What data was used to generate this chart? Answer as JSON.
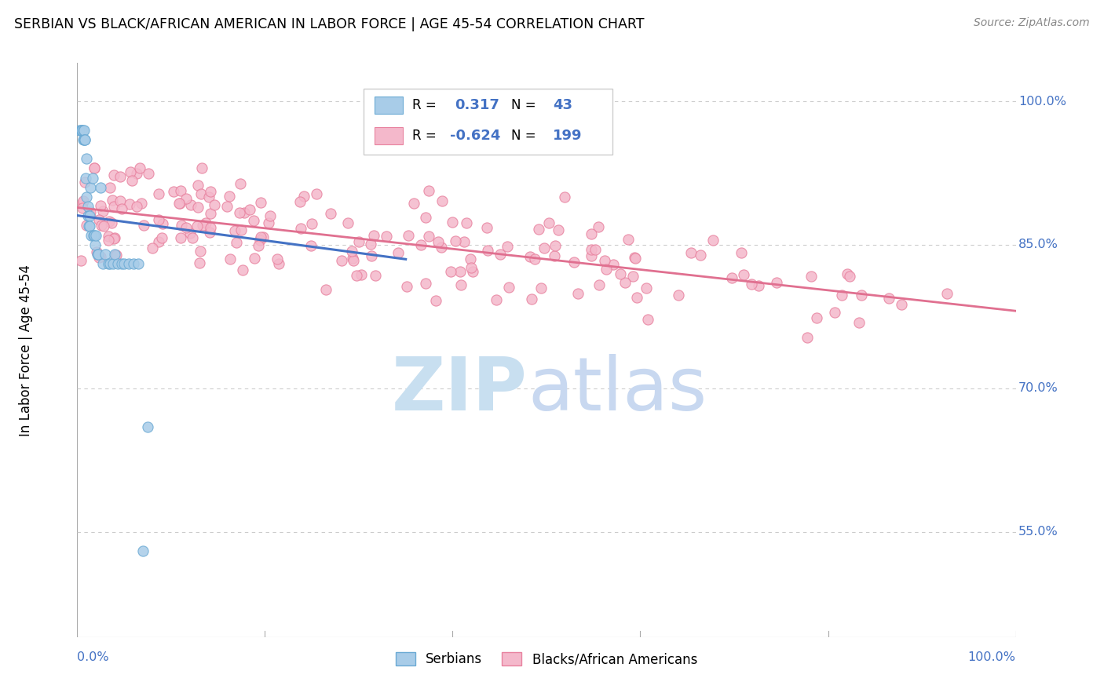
{
  "title": "SERBIAN VS BLACK/AFRICAN AMERICAN IN LABOR FORCE | AGE 45-54 CORRELATION CHART",
  "source": "Source: ZipAtlas.com",
  "ylabel": "In Labor Force | Age 45-54",
  "right_yticks": [
    "100.0%",
    "85.0%",
    "70.0%",
    "55.0%"
  ],
  "right_ytick_vals": [
    1.0,
    0.85,
    0.7,
    0.55
  ],
  "xmin": 0.0,
  "xmax": 1.0,
  "ymin": 0.44,
  "ymax": 1.04,
  "serbian_color": "#a8cce8",
  "serbian_edge": "#6baad4",
  "black_color": "#f4b8cb",
  "black_edge": "#e8829f",
  "line_serb_color": "#4472c4",
  "line_black_color": "#e07090",
  "serbian_R": 0.317,
  "serbian_N": 43,
  "black_R": -0.624,
  "black_N": 199,
  "grid_color": "#cccccc",
  "axis_color": "#aaaaaa",
  "label_blue": "#4472c4",
  "watermark_zip_color": "#c8dff0",
  "watermark_atlas_color": "#c8d8f0"
}
